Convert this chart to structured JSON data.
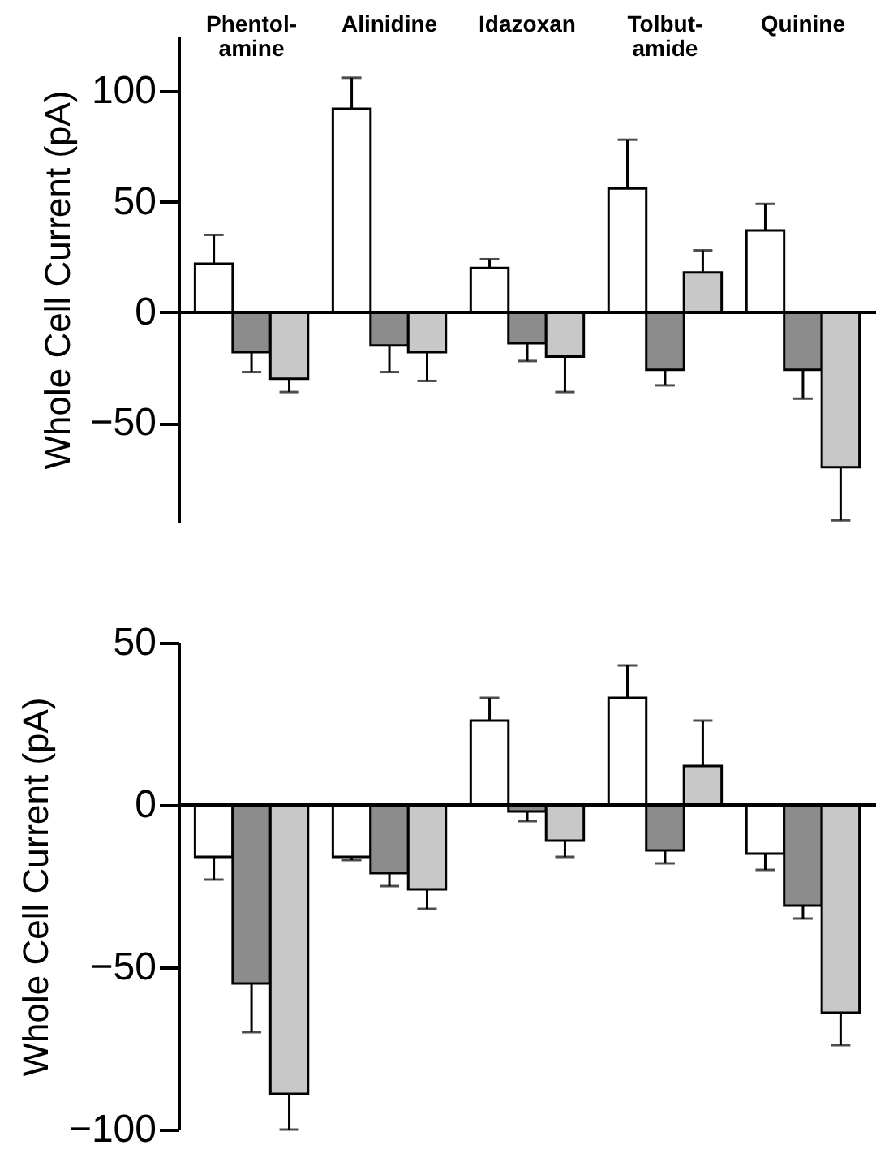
{
  "chart_data": [
    {
      "type": "bar",
      "ylabel": "Whole Cell Current (pA)",
      "categories": [
        "Phentol-\namine",
        "Alinidine",
        "Idazoxan",
        "Tolbut-\namide",
        "Quinine"
      ],
      "ylim": [
        -95,
        125
      ],
      "yticks": [
        -50,
        0,
        50,
        100
      ],
      "legend": false,
      "series": [
        {
          "color": "#ffffff",
          "values": [
            22,
            92,
            20,
            56,
            37
          ],
          "errors": [
            [
              22,
              35
            ],
            [
              92,
              106
            ],
            [
              20,
              24
            ],
            [
              56,
              78
            ],
            [
              37,
              49
            ]
          ]
        },
        {
          "color": "#8c8c8c",
          "values": [
            -18,
            -15,
            -14,
            -26,
            -26
          ],
          "errors": [
            [
              -27,
              -18
            ],
            [
              -27,
              -15
            ],
            [
              -22,
              -14
            ],
            [
              -33,
              -26
            ],
            [
              -39,
              -26
            ]
          ]
        },
        {
          "color": "#c8c8c8",
          "values": [
            -30,
            -18,
            -20,
            18,
            -70
          ],
          "errors": [
            [
              -36,
              -30
            ],
            [
              -31,
              -18
            ],
            [
              -36,
              -20
            ],
            [
              18,
              28
            ],
            [
              -94,
              -70
            ]
          ]
        }
      ]
    },
    {
      "type": "bar",
      "ylabel": "Whole Cell Current (pA)",
      "categories": [
        null,
        null,
        null,
        null,
        null
      ],
      "ylim": [
        -100,
        50
      ],
      "yticks": [
        -100,
        -50,
        0,
        50
      ],
      "legend": false,
      "tick_labels": "y",
      "series": [
        {
          "color": "#ffffff",
          "values": [
            -16,
            -16,
            26,
            33,
            -15
          ],
          "errors": [
            [
              -23,
              -16
            ],
            [
              -17,
              -16
            ],
            [
              26,
              33
            ],
            [
              33,
              43
            ],
            [
              -20,
              -15
            ]
          ]
        },
        {
          "color": "#8c8c8c",
          "values": [
            -55,
            -21,
            -2,
            -14,
            -31
          ],
          "errors": [
            [
              -70,
              -55
            ],
            [
              -25,
              -21
            ],
            [
              -5,
              -2
            ],
            [
              -18,
              -14
            ],
            [
              -35,
              -31
            ]
          ]
        },
        {
          "color": "#c8c8c8",
          "values": [
            -89,
            -26,
            -11,
            12,
            -64
          ],
          "errors": [
            [
              -100,
              -89
            ],
            [
              -32,
              -26
            ],
            [
              -16,
              -11
            ],
            [
              12,
              26
            ],
            [
              -74,
              -64
            ]
          ]
        }
      ]
    }
  ]
}
